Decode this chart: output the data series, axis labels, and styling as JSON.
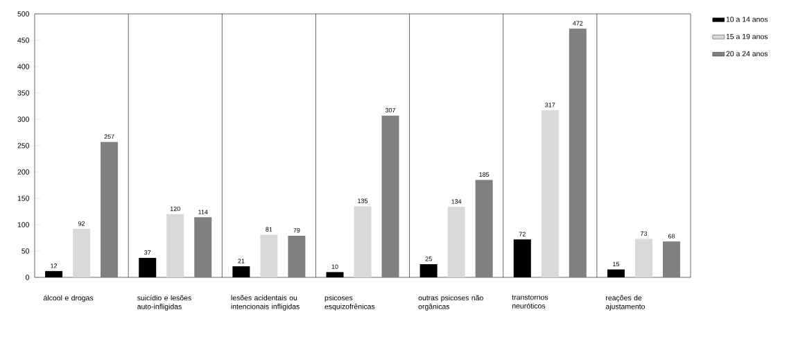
{
  "chart_data": {
    "type": "bar",
    "categories": [
      "álcool e drogas",
      "suicídio e lesões auto-infligidas",
      "lesões acidentais ou intencionais infligidas",
      "psicoses esquizofrênicas",
      "outras psicoses não orgânicas",
      "transtornos neuróticos",
      "reações de ajustamento"
    ],
    "series": [
      {
        "name": "10 a 14 anos",
        "color": "#000000",
        "values": [
          12,
          37,
          21,
          10,
          25,
          72,
          15
        ]
      },
      {
        "name": "15 a 19 anos",
        "color": "#d9d9d9",
        "values": [
          92,
          120,
          81,
          135,
          134,
          317,
          73
        ]
      },
      {
        "name": "20 a 24 anos",
        "color": "#808080",
        "values": [
          257,
          114,
          79,
          307,
          185,
          472,
          68
        ]
      }
    ],
    "ylim": [
      0,
      500
    ],
    "yticks": [
      0,
      50,
      100,
      150,
      200,
      250,
      300,
      350,
      400,
      450,
      500
    ],
    "grid": "x",
    "legend": "right",
    "data_labels": true
  }
}
